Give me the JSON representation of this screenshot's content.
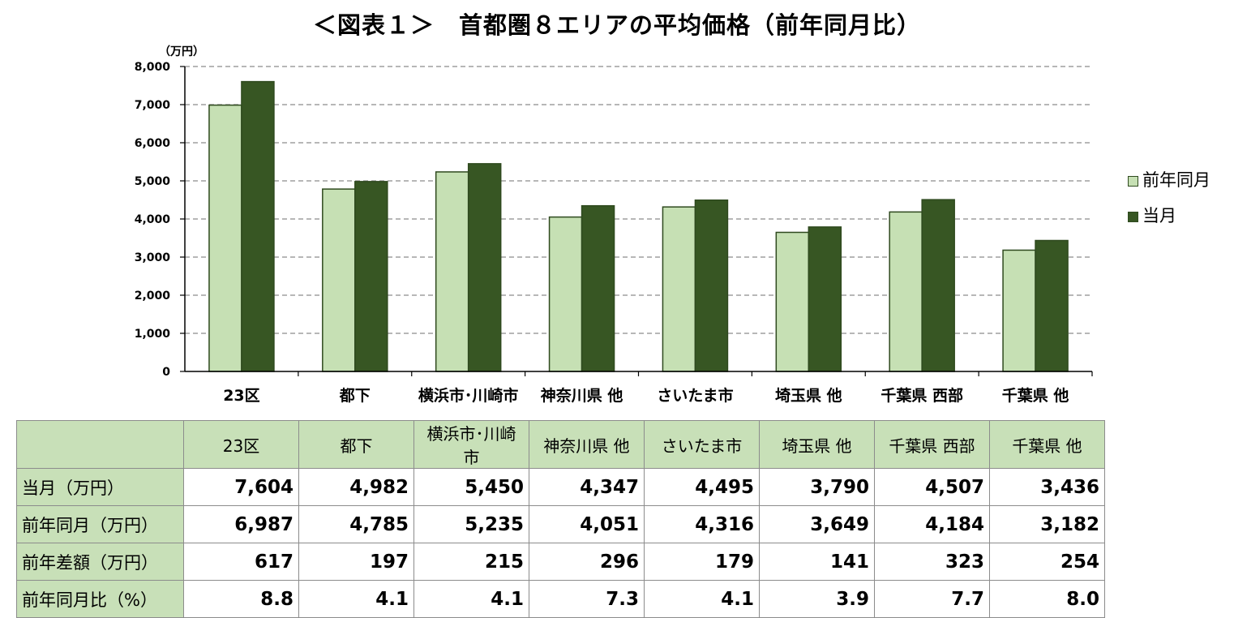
{
  "title": "＜図表１＞　首都圏８エリアの平均価格（前年同月比）",
  "colors": {
    "prev": "#c6e0b4",
    "curr": "#375623",
    "table_header": "#c8e0b8"
  },
  "chart_data": {
    "type": "bar",
    "title": "＜図表１＞　首都圏８エリアの平均価格（前年同月比）",
    "unit_label": "（万円）",
    "categories": [
      "23区",
      "都下",
      "横浜市･川崎市",
      "神奈川県 他",
      "さいたま市",
      "埼玉県 他",
      "千葉県 西部",
      "千葉県 他"
    ],
    "series": [
      {
        "name": "前年同月",
        "color": "#c6e0b4",
        "values": [
          6987,
          4785,
          5235,
          4051,
          4316,
          3649,
          4184,
          3182
        ]
      },
      {
        "name": "当月",
        "color": "#375623",
        "values": [
          7604,
          4982,
          5450,
          4347,
          4495,
          3790,
          4507,
          3436
        ]
      }
    ],
    "ylim": [
      0,
      8000
    ],
    "yticks": [
      "0",
      "1,000",
      "2,000",
      "3,000",
      "4,000",
      "5,000",
      "6,000",
      "7,000",
      "8,000"
    ],
    "grid": true,
    "legend_position": "right"
  },
  "table": {
    "corner": "",
    "headers": [
      "23区",
      "都下",
      "横浜市･川崎市",
      "神奈川県 他",
      "さいたま市",
      "埼玉県 他",
      "千葉県 西部",
      "千葉県 他"
    ],
    "rows": [
      {
        "label": "当月（万円）",
        "values": [
          "7,604",
          "4,982",
          "5,450",
          "4,347",
          "4,495",
          "3,790",
          "4,507",
          "3,436"
        ]
      },
      {
        "label": "前年同月（万円）",
        "values": [
          "6,987",
          "4,785",
          "5,235",
          "4,051",
          "4,316",
          "3,649",
          "4,184",
          "3,182"
        ]
      },
      {
        "label": "前年差額（万円）",
        "values": [
          "617",
          "197",
          "215",
          "296",
          "179",
          "141",
          "323",
          "254"
        ]
      },
      {
        "label": "前年同月比（%）",
        "values": [
          "8.8",
          "4.1",
          "4.1",
          "7.3",
          "4.1",
          "3.9",
          "7.7",
          "8.0"
        ]
      }
    ]
  }
}
